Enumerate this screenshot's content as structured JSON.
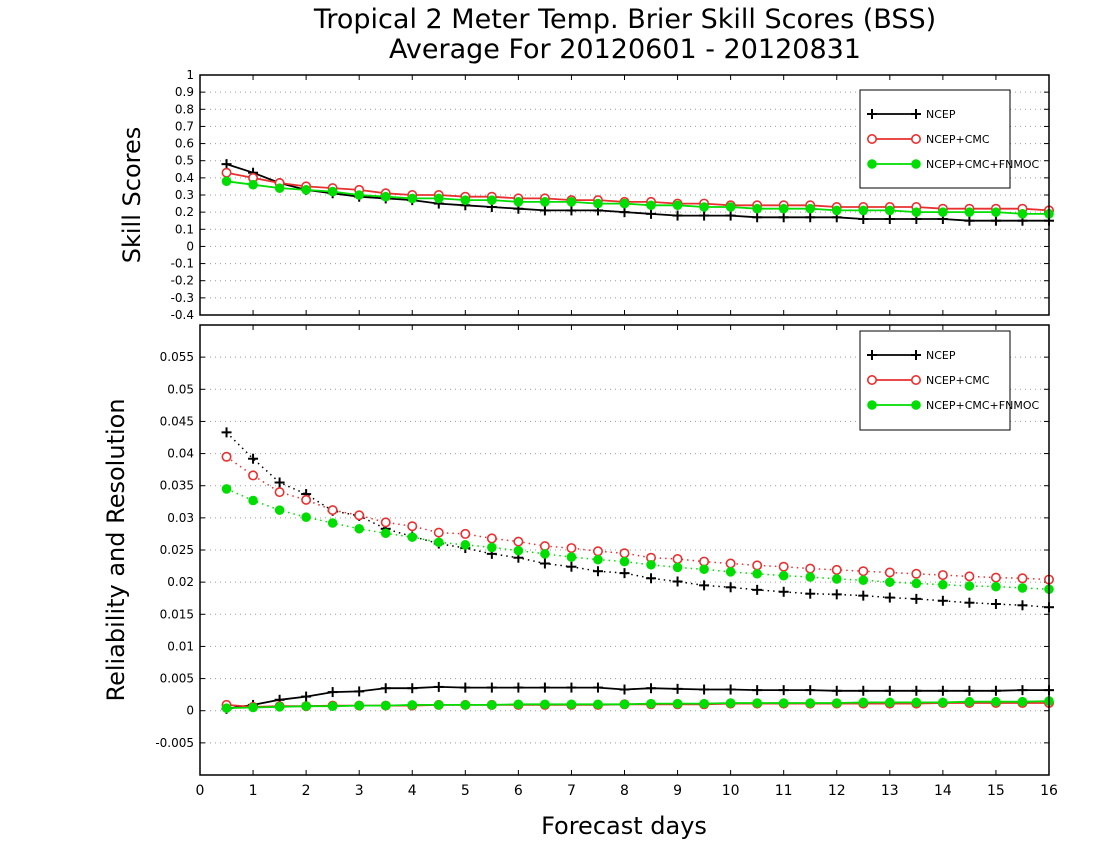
{
  "chart_data": {
    "type": "line",
    "title": "Tropical 2 Meter Temp. Brier Skill Scores (BSS)",
    "subtitle": "Average For 20120601 - 20120831",
    "xlabel": "Forecast days",
    "xlim": [
      0,
      16
    ],
    "x_ticks": [
      "0",
      "1",
      "2",
      "3",
      "4",
      "5",
      "6",
      "7",
      "8",
      "9",
      "10",
      "11",
      "12",
      "13",
      "14",
      "15",
      "16"
    ],
    "x": [
      0.5,
      1,
      1.5,
      2,
      2.5,
      3,
      3.5,
      4,
      4.5,
      5,
      5.5,
      6,
      6.5,
      7,
      7.5,
      8,
      8.5,
      9,
      9.5,
      10,
      10.5,
      11,
      11.5,
      12,
      12.5,
      13,
      13.5,
      14,
      14.5,
      15,
      15.5,
      16
    ],
    "colors": {
      "ncep": "#000000",
      "ncep_cmc": "#e83030",
      "ncep_cmc_fnmoc": "#00dd00",
      "grid": "#999999"
    },
    "panels": [
      {
        "ylabel": "Skill Scores",
        "ylim": [
          -0.4,
          1
        ],
        "y_ticks": [
          "1",
          "0.9",
          "0.8",
          "0.7",
          "0.6",
          "0.5",
          "0.4",
          "0.3",
          "0.2",
          "0.1",
          "0",
          "-0.1",
          "-0.2",
          "-0.3",
          "-0.4"
        ],
        "legend": {
          "position": "top-right",
          "entries": [
            "NCEP",
            "NCEP+CMC",
            "NCEP+CMC+FNMOC"
          ]
        },
        "series": [
          {
            "name": "NCEP",
            "style": "solid",
            "marker": "plus",
            "color_key": "ncep",
            "values": [
              0.48,
              0.43,
              0.37,
              0.33,
              0.31,
              0.29,
              0.28,
              0.27,
              0.25,
              0.24,
              0.23,
              0.22,
              0.21,
              0.21,
              0.21,
              0.2,
              0.19,
              0.18,
              0.18,
              0.18,
              0.17,
              0.17,
              0.17,
              0.17,
              0.16,
              0.16,
              0.16,
              0.16,
              0.15,
              0.15,
              0.15,
              0.15
            ]
          },
          {
            "name": "NCEP+CMC",
            "style": "solid",
            "marker": "open-circle",
            "color_key": "ncep_cmc",
            "values": [
              0.43,
              0.4,
              0.37,
              0.35,
              0.34,
              0.33,
              0.31,
              0.3,
              0.3,
              0.29,
              0.29,
              0.28,
              0.28,
              0.27,
              0.27,
              0.26,
              0.26,
              0.25,
              0.25,
              0.24,
              0.24,
              0.24,
              0.24,
              0.23,
              0.23,
              0.23,
              0.23,
              0.22,
              0.22,
              0.22,
              0.22,
              0.21
            ]
          },
          {
            "name": "NCEP+CMC+FNMOC",
            "style": "solid",
            "marker": "filled-circle",
            "color_key": "ncep_cmc_fnmoc",
            "values": [
              0.38,
              0.36,
              0.34,
              0.33,
              0.32,
              0.3,
              0.29,
              0.28,
              0.28,
              0.27,
              0.27,
              0.26,
              0.26,
              0.26,
              0.25,
              0.25,
              0.24,
              0.24,
              0.23,
              0.23,
              0.22,
              0.22,
              0.22,
              0.21,
              0.21,
              0.21,
              0.2,
              0.2,
              0.2,
              0.2,
              0.19,
              0.19
            ]
          }
        ]
      },
      {
        "ylabel": "Reliability and Resolution",
        "ylim": [
          -0.01,
          0.06
        ],
        "y_ticks": [
          "0.055",
          "0.05",
          "0.045",
          "0.04",
          "0.035",
          "0.03",
          "0.025",
          "0.02",
          "0.015",
          "0.01",
          "0.005",
          "0",
          "-0.005"
        ],
        "legend": {
          "position": "top-right",
          "entries": [
            "NCEP",
            "NCEP+CMC",
            "NCEP+CMC+FNMOC"
          ]
        },
        "series": [
          {
            "name": "NCEP",
            "group": "reliability",
            "style": "solid",
            "marker": "plus",
            "color_key": "ncep",
            "values": [
              0.0003,
              0.0009,
              0.0017,
              0.0022,
              0.0029,
              0.003,
              0.0035,
              0.0035,
              0.0037,
              0.0036,
              0.0036,
              0.0036,
              0.0036,
              0.0036,
              0.0036,
              0.0033,
              0.0035,
              0.0034,
              0.0033,
              0.0033,
              0.0032,
              0.0032,
              0.0032,
              0.0031,
              0.0031,
              0.0031,
              0.0031,
              0.0031,
              0.0031,
              0.0031,
              0.0032,
              0.0032
            ]
          },
          {
            "name": "NCEP+CMC",
            "group": "reliability",
            "style": "solid",
            "marker": "open-circle",
            "color_key": "ncep_cmc",
            "values": [
              0.0009,
              0.0006,
              0.0007,
              0.0007,
              0.0008,
              0.0008,
              0.0008,
              0.0008,
              0.0009,
              0.0009,
              0.0009,
              0.0009,
              0.0009,
              0.0009,
              0.0009,
              0.001,
              0.001,
              0.001,
              0.001,
              0.0011,
              0.0011,
              0.0011,
              0.0011,
              0.0011,
              0.0011,
              0.0011,
              0.0011,
              0.0012,
              0.0012,
              0.0012,
              0.0012,
              0.0012
            ]
          },
          {
            "name": "NCEP+CMC+FNMOC",
            "group": "reliability",
            "style": "solid",
            "marker": "filled-circle",
            "color_key": "ncep_cmc_fnmoc",
            "values": [
              0.0004,
              0.0005,
              0.0006,
              0.0007,
              0.0007,
              0.0008,
              0.0008,
              0.0009,
              0.0009,
              0.0009,
              0.0009,
              0.001,
              0.001,
              0.001,
              0.001,
              0.001,
              0.0011,
              0.0011,
              0.0011,
              0.0012,
              0.0012,
              0.0012,
              0.0012,
              0.0012,
              0.0013,
              0.0013,
              0.0013,
              0.0013,
              0.0014,
              0.0014,
              0.0014,
              0.0015
            ]
          },
          {
            "name": "NCEP",
            "group": "resolution",
            "style": "dotted",
            "marker": "plus",
            "color_key": "ncep",
            "values": [
              0.0433,
              0.0392,
              0.0355,
              0.0337,
              0.0311,
              0.0303,
              0.0283,
              0.0271,
              0.026,
              0.0253,
              0.0244,
              0.0238,
              0.0229,
              0.0224,
              0.0217,
              0.0214,
              0.0206,
              0.0201,
              0.0195,
              0.0192,
              0.0188,
              0.0185,
              0.0182,
              0.0181,
              0.0179,
              0.0176,
              0.0174,
              0.0171,
              0.0168,
              0.0166,
              0.0164,
              0.0161
            ]
          },
          {
            "name": "NCEP+CMC",
            "group": "resolution",
            "style": "dotted",
            "marker": "open-circle",
            "color_key": "ncep_cmc",
            "values": [
              0.0395,
              0.0366,
              0.034,
              0.0328,
              0.0312,
              0.0304,
              0.0293,
              0.0287,
              0.0277,
              0.0275,
              0.0268,
              0.0263,
              0.0256,
              0.0253,
              0.0248,
              0.0245,
              0.0238,
              0.0236,
              0.0232,
              0.0229,
              0.0226,
              0.0224,
              0.0221,
              0.0219,
              0.0217,
              0.0215,
              0.0213,
              0.0211,
              0.0209,
              0.0207,
              0.0206,
              0.0204
            ]
          },
          {
            "name": "NCEP+CMC+FNMOC",
            "group": "resolution",
            "style": "dotted",
            "marker": "filled-circle",
            "color_key": "ncep_cmc_fnmoc",
            "values": [
              0.0345,
              0.0327,
              0.0312,
              0.0301,
              0.0292,
              0.0283,
              0.0276,
              0.027,
              0.0262,
              0.0258,
              0.0254,
              0.0249,
              0.0244,
              0.0239,
              0.0235,
              0.0232,
              0.0227,
              0.0223,
              0.022,
              0.0216,
              0.0213,
              0.021,
              0.0208,
              0.0205,
              0.0203,
              0.02,
              0.0198,
              0.0196,
              0.0194,
              0.0193,
              0.0191,
              0.0189
            ]
          }
        ]
      }
    ]
  }
}
